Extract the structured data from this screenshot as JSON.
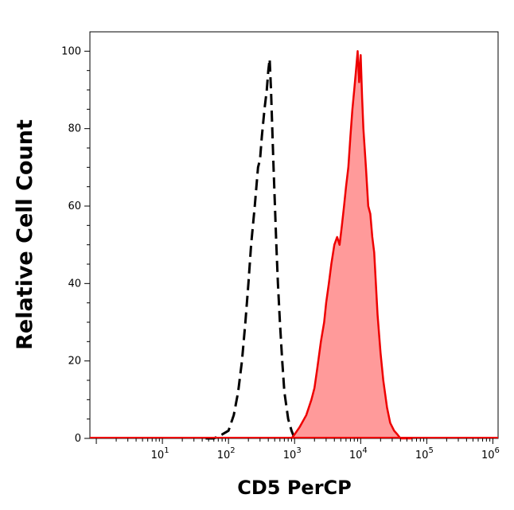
{
  "chart_data": {
    "type": "area",
    "xlabel": "CD5 PerCP",
    "ylabel": "Relative Cell Count",
    "xscale": "log",
    "xlim": [
      0.8,
      1200000
    ],
    "ylim": [
      0,
      105
    ],
    "x_ticks": [
      {
        "base": "10",
        "exp": "1",
        "value": 10
      },
      {
        "base": "10",
        "exp": "2",
        "value": 100
      },
      {
        "base": "10",
        "exp": "3",
        "value": 1000
      },
      {
        "base": "10",
        "exp": "4",
        "value": 10000
      },
      {
        "base": "10",
        "exp": "5",
        "value": 100000
      },
      {
        "base": "10",
        "exp": "6",
        "value": 1000000
      }
    ],
    "y_ticks": [
      "0",
      "20",
      "40",
      "60",
      "80",
      "100"
    ],
    "grid": false,
    "series": [
      {
        "style": "dashed-unfilled",
        "color": "#000000",
        "x": [
          45,
          60,
          80,
          100,
          120,
          140,
          160,
          180,
          200,
          220,
          250,
          280,
          300,
          320,
          350,
          380,
          400,
          420,
          440,
          460,
          480,
          500,
          530,
          560,
          600,
          650,
          700,
          800,
          900,
          1000
        ],
        "y": [
          0,
          0,
          1,
          2,
          6,
          12,
          20,
          30,
          40,
          50,
          60,
          70,
          72,
          78,
          85,
          90,
          95,
          98,
          90,
          80,
          70,
          62,
          50,
          40,
          30,
          20,
          12,
          5,
          2,
          0
        ]
      },
      {
        "style": "filled",
        "color": "#ee0000",
        "fill": "#ff9a9a",
        "x": [
          900,
          1000,
          1200,
          1500,
          1800,
          2000,
          2200,
          2500,
          2800,
          3000,
          3300,
          3600,
          4000,
          4400,
          4800,
          5200,
          5600,
          6000,
          6500,
          7000,
          7500,
          8000,
          8500,
          9000,
          9500,
          10000,
          10500,
          11000,
          12000,
          13000,
          14000,
          15000,
          16000,
          17000,
          18000,
          20000,
          22000,
          25000,
          28000,
          32000,
          36000,
          40000,
          50000,
          60000
        ],
        "y": [
          0,
          1,
          3,
          6,
          10,
          13,
          18,
          25,
          30,
          35,
          40,
          45,
          50,
          52,
          50,
          55,
          60,
          65,
          70,
          78,
          85,
          90,
          95,
          100,
          92,
          99,
          88,
          80,
          70,
          60,
          58,
          52,
          48,
          40,
          32,
          22,
          15,
          8,
          4,
          2,
          1,
          0,
          0,
          0
        ]
      }
    ]
  }
}
